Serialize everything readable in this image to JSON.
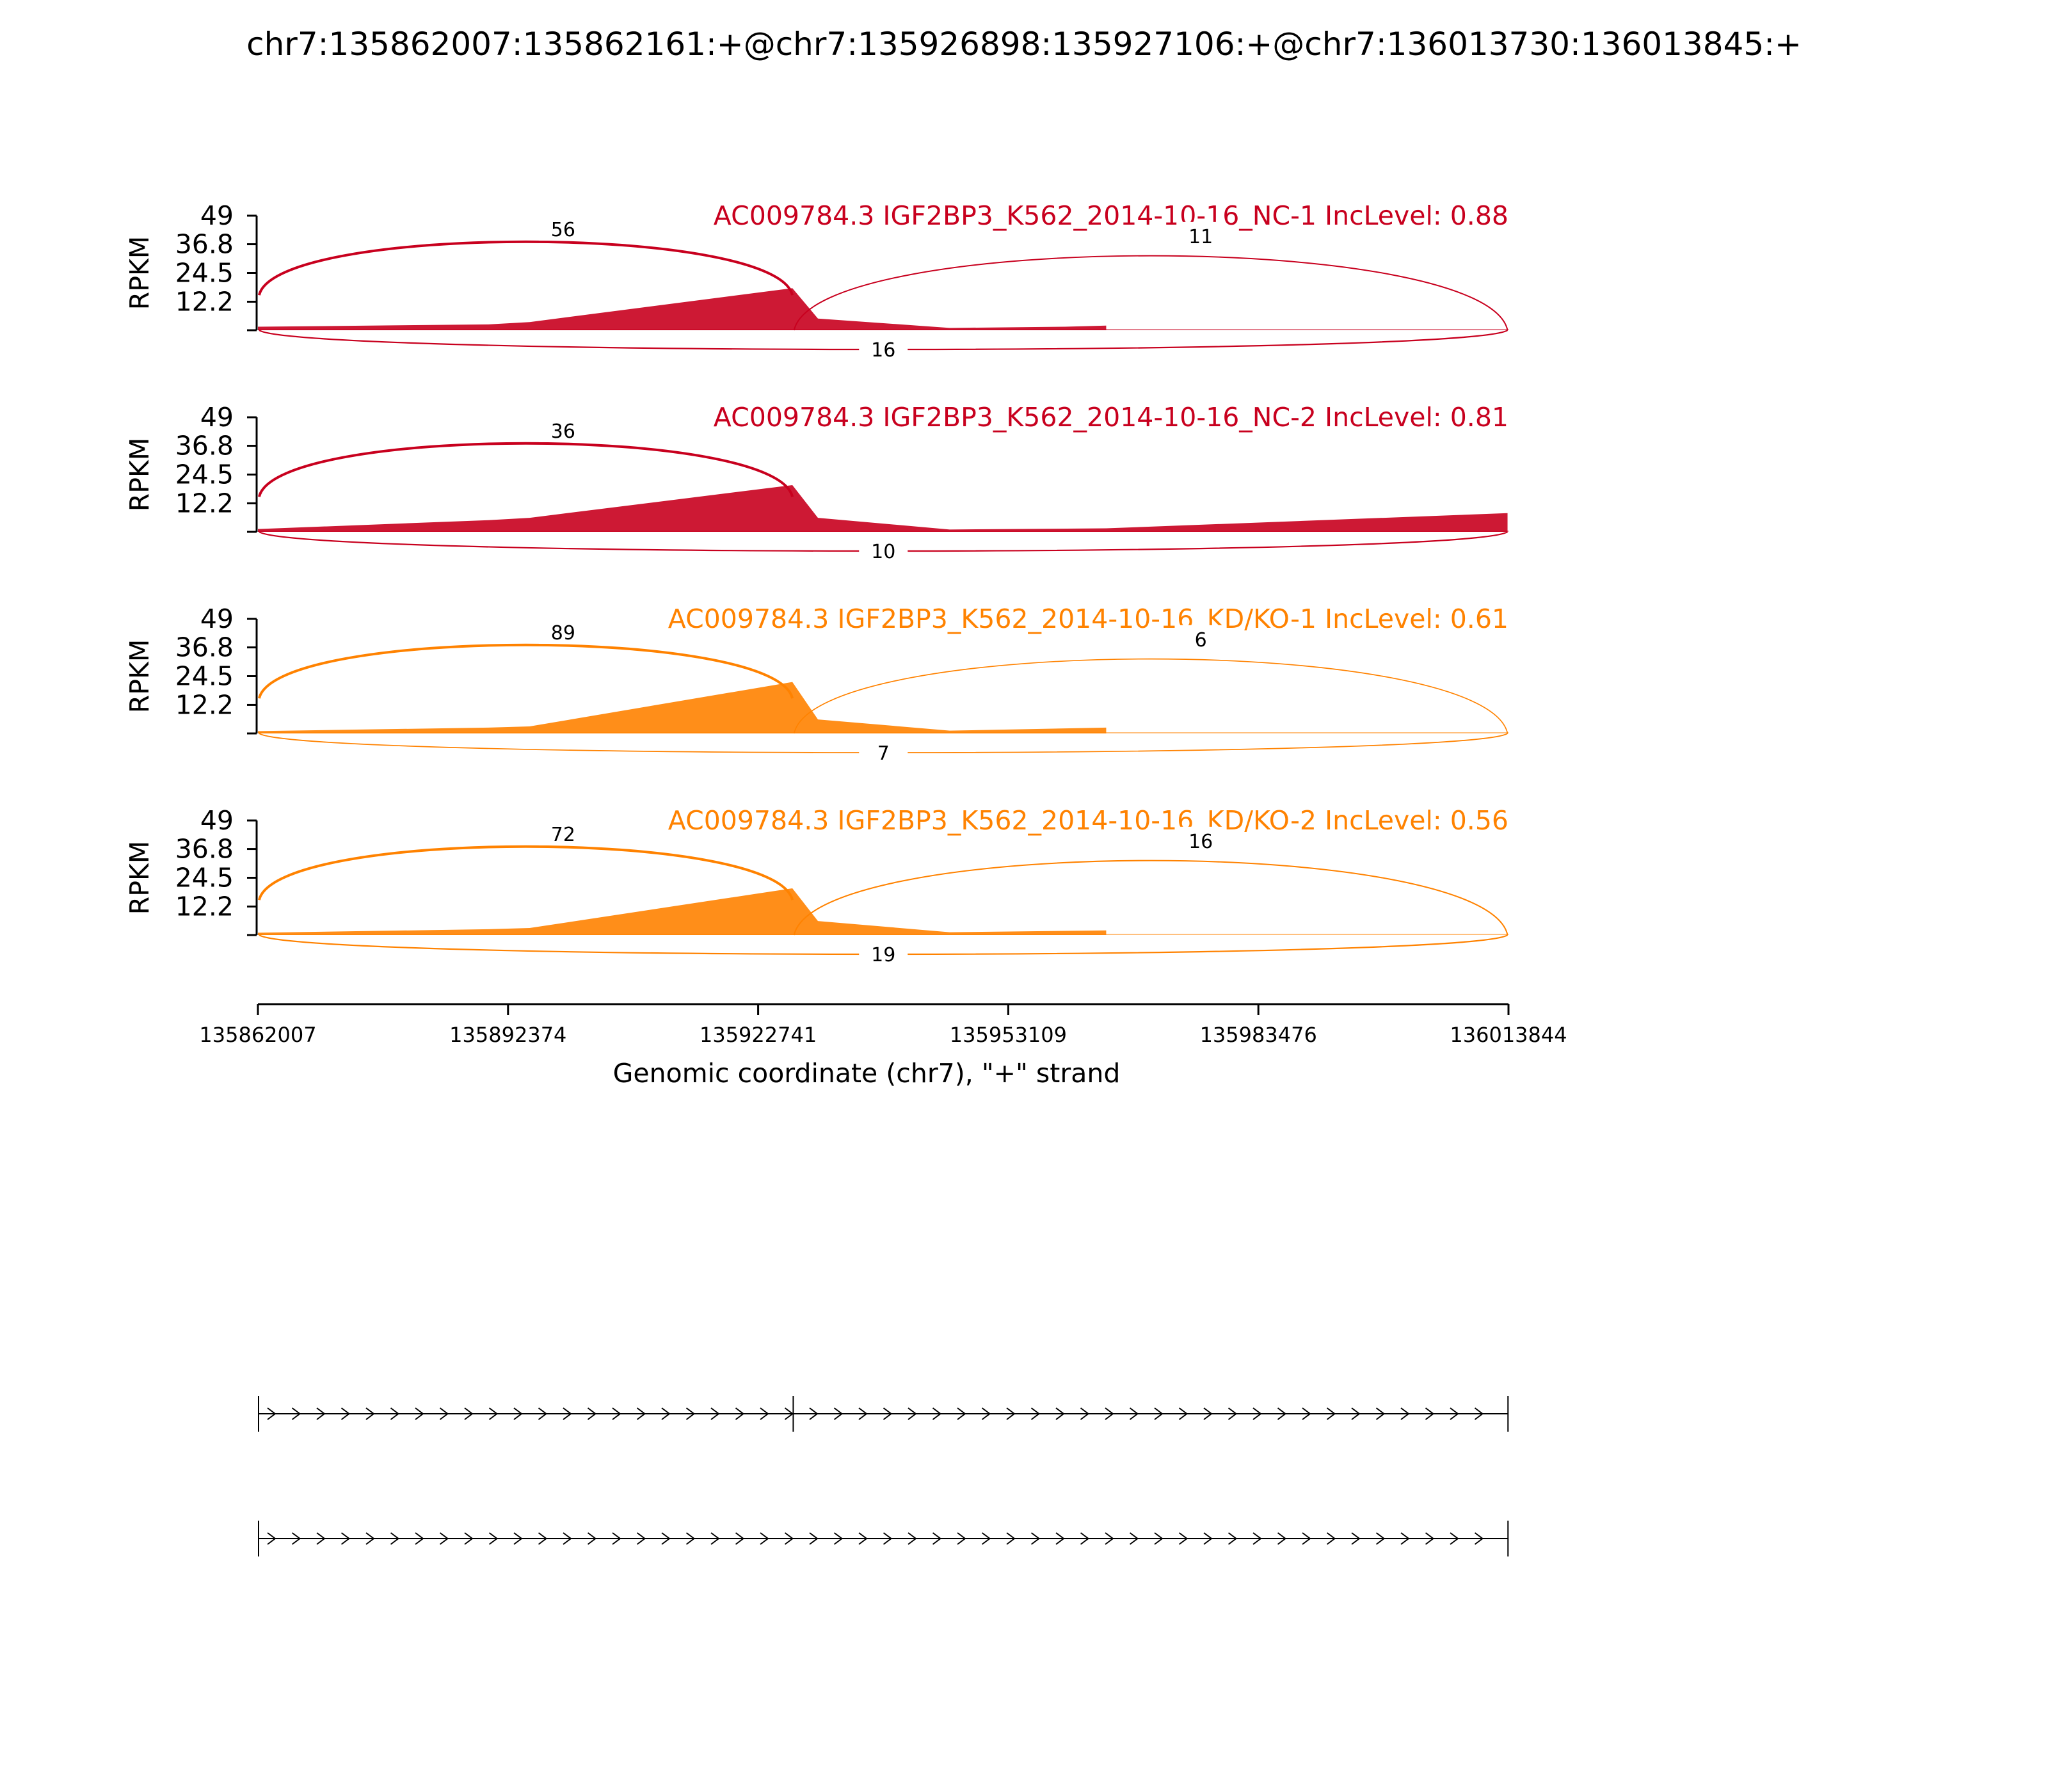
{
  "title": "chr7:135862007:135862161:+@chr7:135926898:135927106:+@chr7:136013730:136013845:+",
  "chart_data": {
    "type": "area",
    "ylabel": "RPKM",
    "xlabel": "Genomic coordinate (chr7), \"+\" strand",
    "xlim": [
      135862007,
      136013844
    ],
    "ylim": [
      0,
      49
    ],
    "yticks": [
      "49",
      "36.8",
      "24.5",
      "12.2"
    ],
    "xticks": [
      {
        "value": 135862007,
        "label": "135862007"
      },
      {
        "value": 135892374,
        "label": "135892374"
      },
      {
        "value": 135922741,
        "label": "135922741"
      },
      {
        "value": 135953109,
        "label": "135953109"
      },
      {
        "value": 135983476,
        "label": "135983476"
      },
      {
        "value": 136013844,
        "label": "136013844"
      }
    ],
    "exons": [
      {
        "start": 135862007,
        "end": 135862161
      },
      {
        "start": 135926898,
        "end": 135927106
      },
      {
        "start": 136013730,
        "end": 136013844
      }
    ],
    "series": [
      {
        "name": "AC009784.3 IGF2BP3_K562_2014-10-16_NC-1 IncLevel: 0.88",
        "color": "#c8001e",
        "junctions": [
          {
            "from": 135862161,
            "to": 135926898,
            "count": "56",
            "side": "top"
          },
          {
            "from": 135927106,
            "to": 136013730,
            "count": "11",
            "side": "top"
          },
          {
            "from": 135862161,
            "to": 136013730,
            "count": "16",
            "side": "bottom"
          }
        ],
        "coverage": [
          {
            "x": 135862007,
            "y": 1.5
          },
          {
            "x": 135890000,
            "y": 2.5
          },
          {
            "x": 135895000,
            "y": 3.5
          },
          {
            "x": 135926898,
            "y": 18
          },
          {
            "x": 135930000,
            "y": 5
          },
          {
            "x": 135946000,
            "y": 1
          },
          {
            "x": 135960000,
            "y": 1.5
          },
          {
            "x": 135965000,
            "y": 2
          }
        ]
      },
      {
        "name": "AC009784.3 IGF2BP3_K562_2014-10-16_NC-2 IncLevel: 0.81",
        "color": "#c8001e",
        "junctions": [
          {
            "from": 135862161,
            "to": 135926898,
            "count": "36",
            "side": "top"
          },
          {
            "from": 135862161,
            "to": 136013730,
            "count": "10",
            "side": "bottom"
          }
        ],
        "coverage": [
          {
            "x": 135862007,
            "y": 1.2
          },
          {
            "x": 135890000,
            "y": 5
          },
          {
            "x": 135895000,
            "y": 6
          },
          {
            "x": 135926898,
            "y": 20
          },
          {
            "x": 135930000,
            "y": 6
          },
          {
            "x": 135946000,
            "y": 1
          },
          {
            "x": 135965000,
            "y": 1.5
          },
          {
            "x": 136013730,
            "y": 8
          }
        ]
      },
      {
        "name": "AC009784.3 IGF2BP3_K562_2014-10-16_KD/KO-1 IncLevel: 0.61",
        "color": "#ff8200",
        "junctions": [
          {
            "from": 135862161,
            "to": 135926898,
            "count": "89",
            "side": "top"
          },
          {
            "from": 135927106,
            "to": 136013730,
            "count": "6",
            "side": "top"
          },
          {
            "from": 135862161,
            "to": 136013730,
            "count": "7",
            "side": "bottom"
          }
        ],
        "coverage": [
          {
            "x": 135862007,
            "y": 1
          },
          {
            "x": 135890000,
            "y": 2.5
          },
          {
            "x": 135895000,
            "y": 3
          },
          {
            "x": 135926898,
            "y": 22
          },
          {
            "x": 135930000,
            "y": 6
          },
          {
            "x": 135946000,
            "y": 1.2
          },
          {
            "x": 135965000,
            "y": 2.5
          }
        ]
      },
      {
        "name": "AC009784.3 IGF2BP3_K562_2014-10-16_KD/KO-2 IncLevel: 0.56",
        "color": "#ff8200",
        "junctions": [
          {
            "from": 135862161,
            "to": 135926898,
            "count": "72",
            "side": "top"
          },
          {
            "from": 135927106,
            "to": 136013730,
            "count": "16",
            "side": "top"
          },
          {
            "from": 135862161,
            "to": 136013730,
            "count": "19",
            "side": "bottom"
          }
        ],
        "coverage": [
          {
            "x": 135862007,
            "y": 1
          },
          {
            "x": 135890000,
            "y": 2.5
          },
          {
            "x": 135895000,
            "y": 3
          },
          {
            "x": 135926898,
            "y": 20
          },
          {
            "x": 135930000,
            "y": 6
          },
          {
            "x": 135946000,
            "y": 1.2
          },
          {
            "x": 135965000,
            "y": 2
          }
        ]
      }
    ],
    "transcripts": [
      {
        "exons_used": [
          0,
          1,
          2
        ]
      },
      {
        "exons_used": [
          0,
          2
        ]
      }
    ]
  }
}
